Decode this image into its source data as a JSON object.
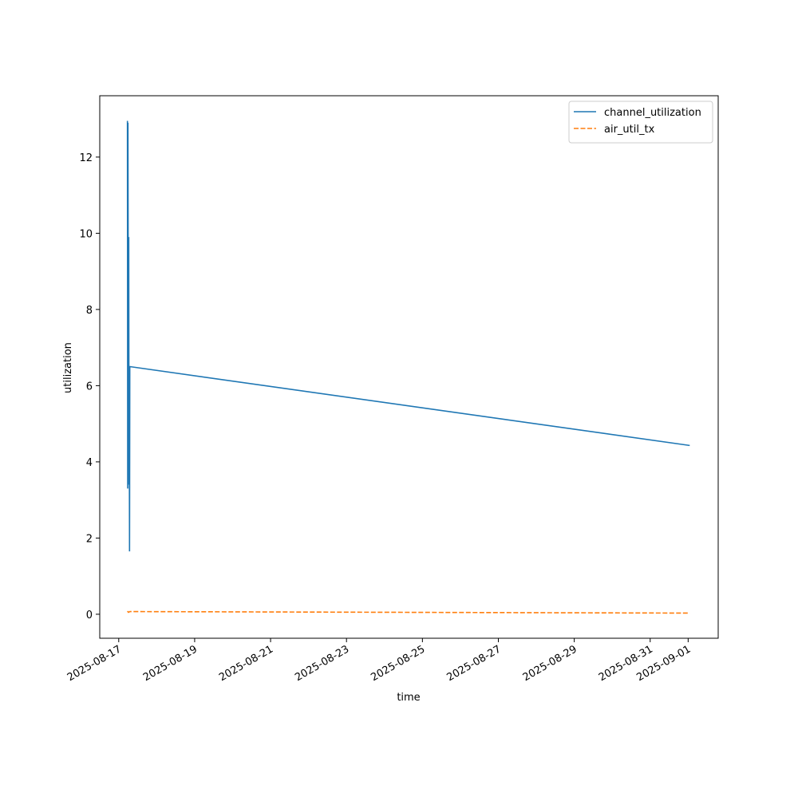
{
  "chart_data": {
    "type": "line",
    "xlabel": "time",
    "ylabel": "utilization",
    "xlim": [
      "2025-08-16T12:00",
      "2025-09-01T19:00"
    ],
    "xticks": [
      "2025-08-17",
      "2025-08-19",
      "2025-08-21",
      "2025-08-23",
      "2025-08-25",
      "2025-08-27",
      "2025-08-29",
      "2025-08-31",
      "2025-09-01"
    ],
    "ylim": [
      -0.63,
      13.61
    ],
    "yticks": [
      0,
      2,
      4,
      6,
      8,
      10,
      12
    ],
    "legend": "upper right",
    "series": [
      {
        "name": "channel_utilization",
        "color": "#1f77b4",
        "linestyle": "solid",
        "x": [
          "2025-08-17T05:30",
          "2025-08-17T05:40",
          "2025-08-17T05:50",
          "2025-08-17T06:10",
          "2025-08-17T06:20",
          "2025-08-17T06:30",
          "2025-08-17T06:40",
          "2025-08-17T06:50",
          "2025-08-17T07:00",
          "2025-09-01T01:00"
        ],
        "values": [
          12.95,
          3.3,
          12.9,
          4.6,
          9.9,
          3.4,
          5.1,
          1.65,
          6.5,
          4.43
        ]
      },
      {
        "name": "air_util_tx",
        "color": "#ff7f0e",
        "linestyle": "dashed",
        "x": [
          "2025-08-17T05:30",
          "2025-08-17T06:10",
          "2025-08-17T07:00",
          "2025-09-01T01:00"
        ],
        "values": [
          0.08,
          0.05,
          0.07,
          0.03
        ]
      }
    ]
  }
}
